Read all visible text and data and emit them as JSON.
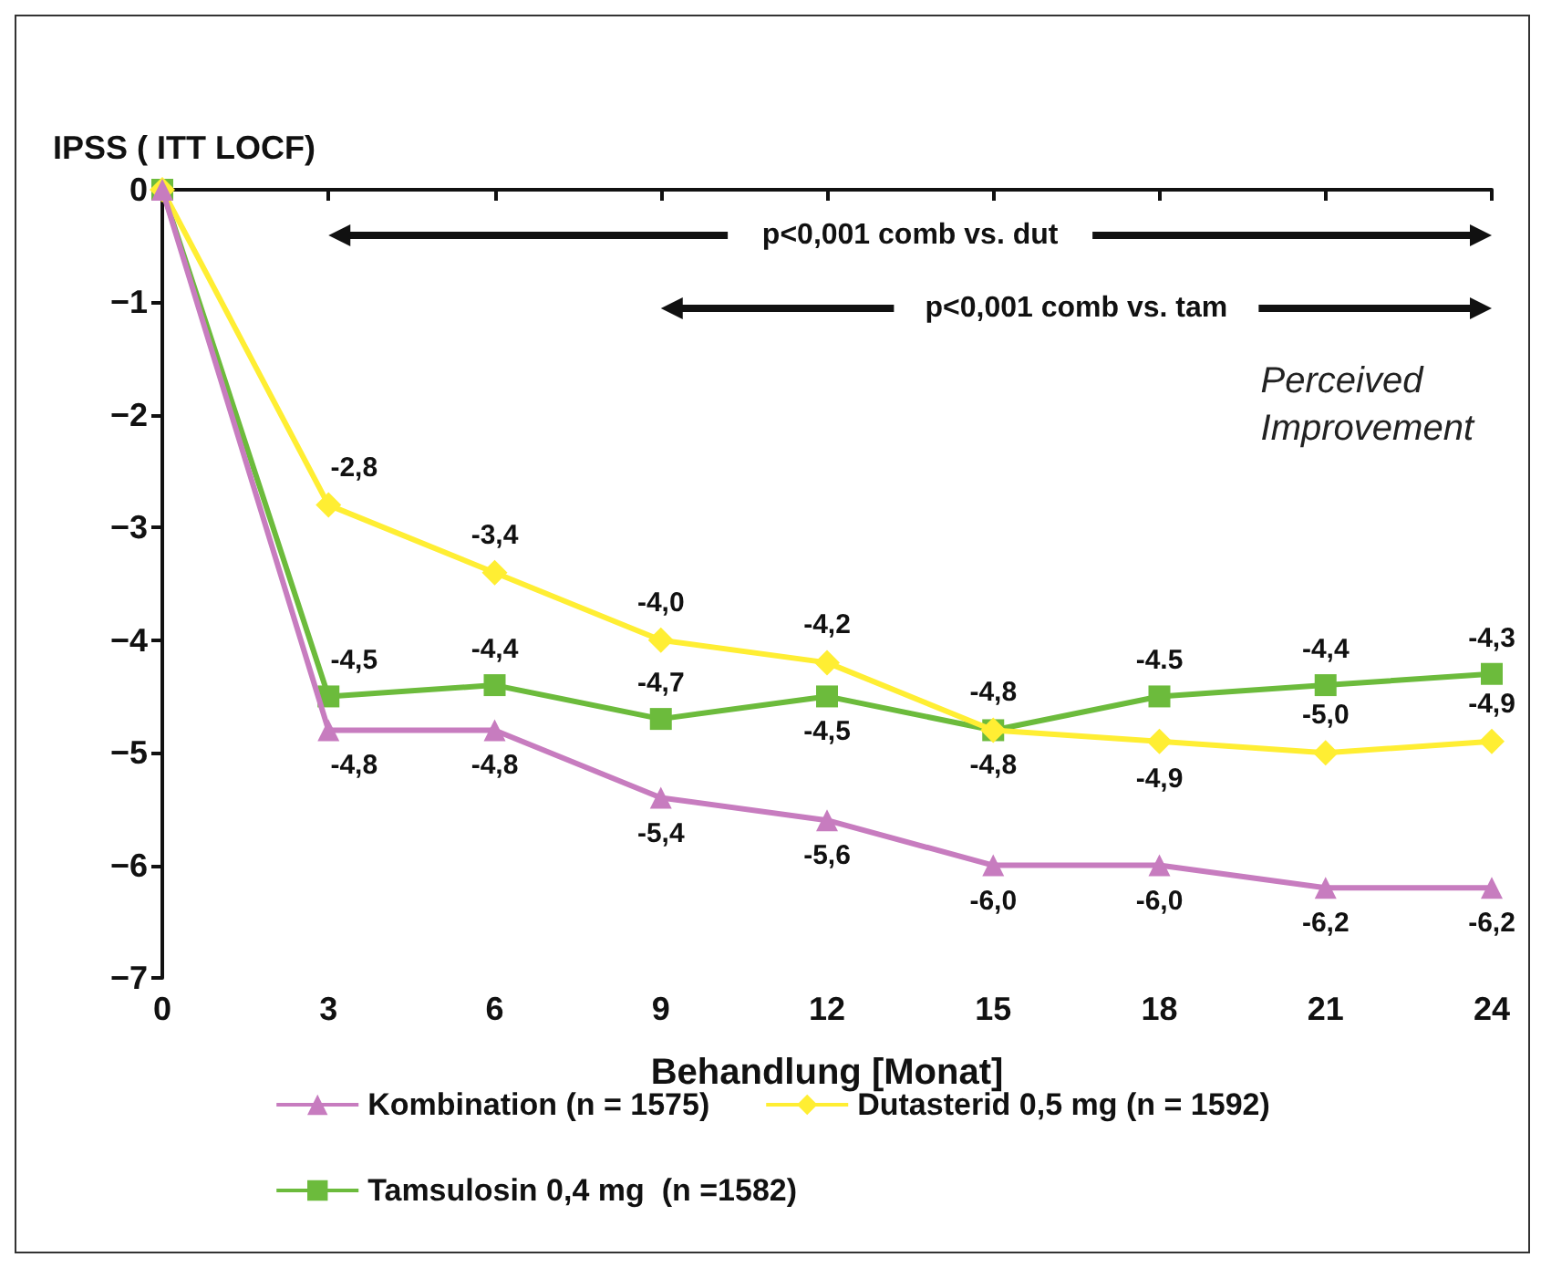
{
  "chart_data": {
    "type": "line",
    "ylabel": "IPSS ( ITT LOCF)",
    "xlabel": "Behandlung [Monat]",
    "x": [
      0,
      3,
      6,
      9,
      12,
      15,
      18,
      21,
      24
    ],
    "series": [
      {
        "name": "Kombination (n = 1575)",
        "color": "#c77cbf",
        "marker": "triangle",
        "values": [
          0,
          -4.8,
          -4.8,
          -5.4,
          -5.6,
          -6.0,
          -6.0,
          -6.2,
          -6.2
        ],
        "value_labels": [
          null,
          "-4,8",
          "-4,8",
          "-5,4",
          "-5,6",
          "-6,0",
          "-6,0",
          "-6,2",
          "-6,2"
        ]
      },
      {
        "name": "Dutasterid 0,5 mg (n = 1592)",
        "color": "#ffee33",
        "marker": "diamond",
        "values": [
          0,
          -2.8,
          -3.4,
          -4.0,
          -4.2,
          -4.8,
          -4.9,
          -5.0,
          -4.9
        ],
        "value_labels": [
          null,
          "-2,8",
          "-3,4",
          "-4,0",
          "-4,2",
          "-4,8",
          "-4,9",
          "-5,0",
          "-4,9"
        ]
      },
      {
        "name": "Tamsulosin 0,4 mg  (n =1582)",
        "color": "#6cbb3c",
        "marker": "square",
        "values": [
          0,
          -4.5,
          -4.4,
          -4.7,
          -4.5,
          -4.8,
          -4.5,
          -4.4,
          -4.3
        ],
        "value_labels": [
          null,
          "-4,5",
          "-4,4",
          "-4,7",
          "-4,5",
          "-4,8",
          "-4.5",
          "-4,4",
          "-4,3"
        ]
      }
    ],
    "xlim": [
      0,
      24
    ],
    "xticks": [
      0,
      3,
      6,
      9,
      12,
      15,
      18,
      21,
      24
    ],
    "ylim": [
      -7,
      0
    ],
    "yticks": [
      -7,
      -6,
      -5,
      -4,
      -3,
      -2,
      -1,
      0
    ],
    "grid": false,
    "legend": "bottom",
    "line_style": "solid",
    "annotations": [
      "p<0,001 comb vs. dut",
      "p<0,001 comb vs. tam",
      "Perceived Improvement"
    ]
  }
}
